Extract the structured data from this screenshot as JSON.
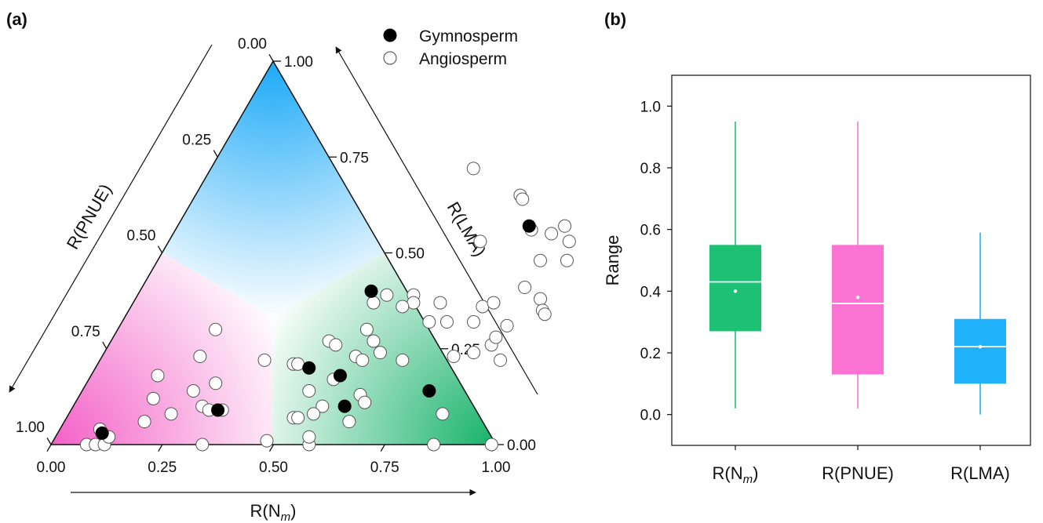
{
  "panels": {
    "a_label": "(a)",
    "b_label": "(b)"
  },
  "colors": {
    "nm": "#1dc173",
    "pnue": "#fb74d4",
    "lma": "#1fb2fb",
    "gymnosperm": "#000000",
    "angiosperm": "#ffffff"
  },
  "chart_data": [
    {
      "type": "scatter",
      "subtype": "ternary",
      "panel": "(a)",
      "axes": {
        "bottom": {
          "label_main": "R(N",
          "label_sub": "m",
          "label_close": ")",
          "ticks": [
            "0.00",
            "0.25",
            "0.50",
            "0.75",
            "1.00"
          ]
        },
        "left": {
          "label": "R(PNUE)",
          "ticks": [
            "0.00",
            "0.25",
            "0.50",
            "0.75",
            "1.00"
          ]
        },
        "right": {
          "label": "R(LMA)",
          "ticks": [
            "0.00",
            "0.25",
            "0.50",
            "0.75",
            "1.00"
          ]
        }
      },
      "regions": [
        "LMA-dominant (top, blue)",
        "PNUE-dominant (left, pink)",
        "Nm-dominant (right, green)"
      ],
      "legend": {
        "position": "top-right",
        "items": [
          {
            "label": "Gymnosperm",
            "fill": "#000000"
          },
          {
            "label": "Angiosperm",
            "fill": "#ffffff"
          }
        ]
      },
      "series": [
        {
          "name": "Gymnosperm",
          "points": [
            {
              "nm": 0.1,
              "lma": 0.03
            },
            {
              "nm": 0.33,
              "lma": 0.09
            },
            {
              "nm": 0.48,
              "lma": 0.2
            },
            {
              "nm": 0.56,
              "lma": 0.18
            },
            {
              "nm": 0.61,
              "lma": 0.1
            },
            {
              "nm": 0.52,
              "lma": 0.4
            },
            {
              "nm": 0.79,
              "lma": 0.57
            },
            {
              "nm": 0.78,
              "lma": 0.14
            }
          ]
        },
        {
          "name": "Angiosperm",
          "points": [
            {
              "nm": 0.08,
              "lma": 0.0
            },
            {
              "nm": 0.1,
              "lma": 0.0
            },
            {
              "nm": 0.12,
              "lma": 0.0
            },
            {
              "nm": 0.12,
              "lma": 0.02
            },
            {
              "nm": 0.09,
              "lma": 0.04
            },
            {
              "nm": 0.17,
              "lma": 0.12
            },
            {
              "nm": 0.15,
              "lma": 0.18
            },
            {
              "nm": 0.22,
              "lma": 0.23
            },
            {
              "nm": 0.22,
              "lma": 0.3
            },
            {
              "nm": 0.18,
              "lma": 0.06
            },
            {
              "nm": 0.23,
              "lma": 0.08
            },
            {
              "nm": 0.25,
              "lma": 0.14
            },
            {
              "nm": 0.29,
              "lma": 0.1
            },
            {
              "nm": 0.31,
              "lma": 0.09
            },
            {
              "nm": 0.34,
              "lma": 0.09
            },
            {
              "nm": 0.29,
              "lma": 0.16
            },
            {
              "nm": 0.34,
              "lma": 0.0
            },
            {
              "nm": 0.37,
              "lma": 0.22
            },
            {
              "nm": 0.44,
              "lma": 0.21
            },
            {
              "nm": 0.45,
              "lma": 0.21
            },
            {
              "nm": 0.49,
              "lma": 0.27
            },
            {
              "nm": 0.51,
              "lma": 0.26
            },
            {
              "nm": 0.51,
              "lma": 0.14
            },
            {
              "nm": 0.51,
              "lma": 0.07
            },
            {
              "nm": 0.52,
              "lma": 0.07
            },
            {
              "nm": 0.48,
              "lma": 0.01
            },
            {
              "nm": 0.55,
              "lma": 0.17
            },
            {
              "nm": 0.57,
              "lma": 0.23
            },
            {
              "nm": 0.59,
              "lma": 0.27
            },
            {
              "nm": 0.56,
              "lma": 0.3
            },
            {
              "nm": 0.58,
              "lma": 0.0
            },
            {
              "nm": 0.62,
              "lma": 0.39
            },
            {
              "nm": 0.63,
              "lma": 0.37
            },
            {
              "nm": 0.62,
              "lma": 0.24
            },
            {
              "nm": 0.63,
              "lma": 0.13
            },
            {
              "nm": 0.65,
              "lma": 0.11
            },
            {
              "nm": 0.64,
              "lma": 0.06
            },
            {
              "nm": 0.68,
              "lma": 0.22
            },
            {
              "nm": 0.69,
              "lma": 0.32
            },
            {
              "nm": 0.73,
              "lma": 0.32
            },
            {
              "nm": 0.73,
              "lma": 0.65
            },
            {
              "nm": 0.74,
              "lma": 0.64
            },
            {
              "nm": 0.79,
              "lma": 0.32
            },
            {
              "nm": 0.79,
              "lma": 0.23
            },
            {
              "nm": 0.83,
              "lma": 0.24
            },
            {
              "nm": 0.86,
              "lma": 0.26
            },
            {
              "nm": 0.86,
              "lma": 0.28
            },
            {
              "nm": 0.87,
              "lma": 0.31
            },
            {
              "nm": 0.86,
              "lma": 0.41
            },
            {
              "nm": 0.86,
              "lma": 0.48
            },
            {
              "nm": 0.85,
              "lma": 0.55
            },
            {
              "nm": 0.8,
              "lma": 0.56
            },
            {
              "nm": 0.87,
              "lma": 0.57
            },
            {
              "nm": 0.9,
              "lma": 0.53
            },
            {
              "nm": 0.92,
              "lma": 0.48
            },
            {
              "nm": 0.91,
              "lma": 0.38
            },
            {
              "nm": 0.93,
              "lma": 0.35
            },
            {
              "nm": 0.94,
              "lma": 0.34
            },
            {
              "nm": 0.9,
              "lma": 0.22
            },
            {
              "nm": 0.84,
              "lma": 0.08
            },
            {
              "nm": 0.86,
              "lma": 0.0
            },
            {
              "nm": 0.59,
              "lma": 0.22
            },
            {
              "nm": 0.54,
              "lma": 0.37
            },
            {
              "nm": 0.56,
              "lma": 0.39
            },
            {
              "nm": 0.61,
              "lma": 0.36
            },
            {
              "nm": 0.79,
              "lma": 0.36
            },
            {
              "nm": 0.81,
              "lma": 0.37
            },
            {
              "nm": 0.7,
              "lma": 0.53
            },
            {
              "nm": 0.69,
              "lma": 0.37
            },
            {
              "nm": 0.57,
              "lma": 0.02
            },
            {
              "nm": 0.99,
              "lma": 0.0
            },
            {
              "nm": 0.59,
              "lma": 0.72
            },
            {
              "nm": 0.56,
              "lma": 0.1
            },
            {
              "nm": 0.55,
              "lma": 0.08
            }
          ]
        }
      ]
    },
    {
      "type": "box",
      "panel": "(b)",
      "title": "",
      "ylabel": "Range",
      "ylim": [
        -0.1,
        1.1
      ],
      "yticks": [
        "0.0",
        "0.2",
        "0.4",
        "0.6",
        "0.8",
        "1.0"
      ],
      "categories": [
        "R(Nm)",
        "R(PNUE)",
        "R(LMA)"
      ],
      "category_labels": [
        {
          "main": "R(N",
          "sub": "m",
          "close": ")"
        },
        {
          "main": "R(PNUE)",
          "sub": "",
          "close": ""
        },
        {
          "main": "R(LMA)",
          "sub": "",
          "close": ""
        }
      ],
      "boxes": [
        {
          "name": "R(Nm)",
          "min": 0.02,
          "q1": 0.27,
          "median": 0.43,
          "mean": 0.4,
          "q3": 0.55,
          "max": 0.95,
          "color": "#1dc173"
        },
        {
          "name": "R(PNUE)",
          "min": 0.02,
          "q1": 0.13,
          "median": 0.36,
          "mean": 0.38,
          "q3": 0.55,
          "max": 0.95,
          "color": "#fb74d4"
        },
        {
          "name": "R(LMA)",
          "min": 0.0,
          "q1": 0.1,
          "median": 0.22,
          "mean": 0.22,
          "q3": 0.31,
          "max": 0.59,
          "color": "#1fb2fb"
        }
      ]
    }
  ]
}
